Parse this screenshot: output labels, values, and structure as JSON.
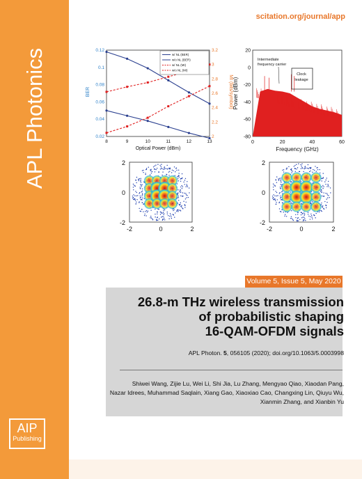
{
  "journal": {
    "title": "APL Photonics",
    "url": "scitation.org/journal/app"
  },
  "publisher": {
    "logo_main": "AIP",
    "logo_sub": "Publishing"
  },
  "issue": {
    "label": "Volume 5, Issue 5, May 2020"
  },
  "article": {
    "title_lines": [
      "26.8-m THz wireless transmission",
      "of probabilistic shaping",
      "16-QAM-OFDM signals"
    ],
    "citation_prefix": "APL Photon.",
    "citation_volume": "5",
    "citation_rest": ", 056105 (2020); doi.org/10.1063/5.0003998",
    "author_lines": [
      "Shiwei Wang, Zijie Lu, Wei Li, Shi Jia, Lu Zhang, Mengyao Qiao, Xiaodan Pang,",
      "Nazar Idrees, Muhammad Saqlain, Xiang Gao, Xiaoxiao Cao, Changxing Lin, Qiuyu Wu,",
      "Xianmin Zhang, and Xianbin Yu"
    ]
  },
  "figure": {
    "ber_chart": {
      "xlabel": "Optical Power (dBm)",
      "ylabel_left": "BER",
      "ylabel_right": "MI (bits/symbol)",
      "xticks": [
        "8",
        "9",
        "10",
        "11",
        "12",
        "13"
      ],
      "yticks_left": [
        "0.12",
        "0.1",
        "0.08",
        "0.06",
        "0.04",
        "0.02"
      ],
      "yticks_right": [
        "3.2",
        "3",
        "2.8",
        "2.6",
        "2.4",
        "2.2",
        "2"
      ],
      "legend": [
        "w/ NL (BER)",
        "w/o NL (BER)",
        "w/ NL (MI)",
        "w/o NL (MI)"
      ],
      "colors": {
        "ber": "#2a3f8f",
        "mi": "#e02020"
      }
    },
    "spectrum_chart": {
      "xlabel": "Frequency (GHz)",
      "ylabel": "Power (dBm)",
      "xticks": [
        "0",
        "20",
        "40",
        "60"
      ],
      "yticks": [
        "20",
        "0",
        "-20",
        "-40",
        "-60",
        "-80"
      ],
      "annotation_carrier": [
        "Intermediate",
        "frequency carrier"
      ],
      "annotation_clock": [
        "Clock",
        "leakage"
      ],
      "color": "#e02020"
    },
    "constellation_ticks": [
      "-2",
      "0",
      "2"
    ],
    "constellation_yticks": [
      "2",
      "0",
      "-2"
    ]
  },
  "chart_data": [
    {
      "type": "line",
      "xlabel": "Optical Power (dBm)",
      "ylabel": "BER",
      "y2label": "MI (bits/symbol)",
      "x": [
        8,
        9,
        10,
        11,
        12,
        13
      ],
      "xlim": [
        8,
        13
      ],
      "ylim": [
        0.02,
        0.12
      ],
      "y2lim": [
        2,
        3.2
      ],
      "series": [
        {
          "name": "w/ NL (BER)",
          "axis": "left",
          "values": [
            0.118,
            0.11,
            0.099,
            0.085,
            0.071,
            0.058
          ]
        },
        {
          "name": "w/o NL (BER)",
          "axis": "left",
          "values": [
            0.05,
            0.044,
            0.038,
            0.031,
            0.024,
            0.018
          ]
        },
        {
          "name": "w/ NL (MI)",
          "axis": "right",
          "values": [
            2.62,
            2.69,
            2.75,
            2.83,
            2.91,
            3.0
          ]
        },
        {
          "name": "w/o NL (MI)",
          "axis": "right",
          "values": [
            2.05,
            2.14,
            2.26,
            2.42,
            2.56,
            2.7
          ]
        }
      ]
    },
    {
      "type": "line",
      "xlabel": "Frequency (GHz)",
      "ylabel": "Power (dBm)",
      "xlim": [
        0,
        60
      ],
      "ylim": [
        -80,
        20
      ],
      "series": [
        {
          "name": "",
          "x": [
            0,
            5,
            10,
            15,
            20,
            25,
            30,
            35,
            40,
            45,
            50,
            55,
            60
          ],
          "values": [
            -80,
            -28,
            -25,
            -27,
            -28,
            -30,
            -35,
            -40,
            -45,
            -48,
            -50,
            -52,
            -55
          ]
        }
      ]
    }
  ]
}
